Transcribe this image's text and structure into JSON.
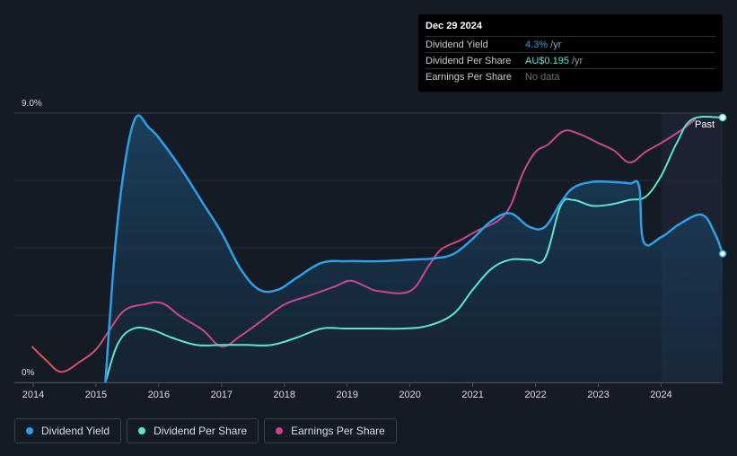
{
  "tooltip": {
    "date": "Dec 29 2024",
    "rows": [
      {
        "label": "Dividend Yield",
        "value": "4.3%",
        "unit": " /yr",
        "color": "#2e9fe6"
      },
      {
        "label": "Dividend Per Share",
        "value": "AU$0.195",
        "unit": " /yr",
        "color": "#5ee4d1"
      },
      {
        "label": "Earnings Per Share",
        "value": "No data",
        "unit": "",
        "color": "#6b7078"
      }
    ]
  },
  "past_label": "Past",
  "legend": [
    {
      "label": "Dividend Yield",
      "color": "#2e9fe6"
    },
    {
      "label": "Dividend Per Share",
      "color": "#5ee4d1"
    },
    {
      "label": "Earnings Per Share",
      "color": "#c9468f"
    }
  ],
  "chart_data": {
    "type": "line",
    "y_tick_labels": [
      "9.0%",
      "0%"
    ],
    "ylim": [
      0,
      9.0
    ],
    "xlim": [
      2013.7,
      2024.98
    ],
    "x_tick_labels": [
      "2014",
      "2015",
      "2016",
      "2017",
      "2018",
      "2019",
      "2020",
      "2021",
      "2022",
      "2023",
      "2024"
    ],
    "x_ticks": [
      2014,
      2015,
      2016,
      2017,
      2018,
      2019,
      2020,
      2021,
      2022,
      2023,
      2024
    ],
    "forecast_start": 2024.0,
    "series": [
      {
        "name": "Dividend Yield",
        "color": "#2e9fe6",
        "filled": true,
        "points": [
          [
            2015.15,
            0
          ],
          [
            2015.35,
            5.5
          ],
          [
            2015.6,
            8.7
          ],
          [
            2015.85,
            8.5
          ],
          [
            2016.1,
            7.9
          ],
          [
            2016.4,
            7.0
          ],
          [
            2016.7,
            6.0
          ],
          [
            2017.0,
            5.0
          ],
          [
            2017.3,
            3.8
          ],
          [
            2017.6,
            3.1
          ],
          [
            2017.9,
            3.1
          ],
          [
            2018.2,
            3.5
          ],
          [
            2018.6,
            4.0
          ],
          [
            2019.0,
            4.05
          ],
          [
            2019.5,
            4.05
          ],
          [
            2020.0,
            4.1
          ],
          [
            2020.4,
            4.15
          ],
          [
            2020.7,
            4.3
          ],
          [
            2021.0,
            4.8
          ],
          [
            2021.3,
            5.4
          ],
          [
            2021.6,
            5.65
          ],
          [
            2021.9,
            5.2
          ],
          [
            2022.15,
            5.2
          ],
          [
            2022.4,
            6.0
          ],
          [
            2022.6,
            6.5
          ],
          [
            2022.9,
            6.7
          ],
          [
            2023.2,
            6.7
          ],
          [
            2023.5,
            6.65
          ],
          [
            2023.65,
            6.55
          ],
          [
            2023.72,
            4.7
          ],
          [
            2024.0,
            4.85
          ],
          [
            2024.3,
            5.3
          ],
          [
            2024.65,
            5.6
          ],
          [
            2024.85,
            5.0
          ],
          [
            2024.98,
            4.3
          ]
        ]
      },
      {
        "name": "Dividend Per Share",
        "color": "#5ee4d1",
        "filled": false,
        "points": [
          [
            2015.15,
            0
          ],
          [
            2015.35,
            1.3
          ],
          [
            2015.6,
            1.8
          ],
          [
            2015.9,
            1.75
          ],
          [
            2016.2,
            1.5
          ],
          [
            2016.6,
            1.25
          ],
          [
            2017.0,
            1.25
          ],
          [
            2017.4,
            1.25
          ],
          [
            2017.8,
            1.25
          ],
          [
            2018.2,
            1.5
          ],
          [
            2018.6,
            1.8
          ],
          [
            2019.0,
            1.8
          ],
          [
            2019.5,
            1.8
          ],
          [
            2019.9,
            1.8
          ],
          [
            2020.3,
            1.9
          ],
          [
            2020.7,
            2.3
          ],
          [
            2021.0,
            3.1
          ],
          [
            2021.3,
            3.8
          ],
          [
            2021.6,
            4.1
          ],
          [
            2021.9,
            4.1
          ],
          [
            2022.15,
            4.15
          ],
          [
            2022.4,
            5.9
          ],
          [
            2022.6,
            6.1
          ],
          [
            2022.9,
            5.9
          ],
          [
            2023.2,
            5.95
          ],
          [
            2023.5,
            6.1
          ],
          [
            2023.75,
            6.2
          ],
          [
            2024.0,
            6.9
          ],
          [
            2024.25,
            8.0
          ],
          [
            2024.5,
            8.8
          ],
          [
            2024.98,
            8.85
          ]
        ]
      },
      {
        "name": "Earnings Per Share",
        "color_start": "#e25151",
        "color_end": "#c9468f",
        "filled": false,
        "points": [
          [
            2013.98,
            1.2
          ],
          [
            2014.2,
            0.75
          ],
          [
            2014.45,
            0.35
          ],
          [
            2014.75,
            0.7
          ],
          [
            2015.0,
            1.1
          ],
          [
            2015.2,
            1.7
          ],
          [
            2015.45,
            2.4
          ],
          [
            2015.75,
            2.6
          ],
          [
            2016.05,
            2.65
          ],
          [
            2016.35,
            2.2
          ],
          [
            2016.7,
            1.75
          ],
          [
            2017.0,
            1.2
          ],
          [
            2017.3,
            1.55
          ],
          [
            2017.6,
            2.0
          ],
          [
            2018.0,
            2.6
          ],
          [
            2018.4,
            2.9
          ],
          [
            2018.8,
            3.2
          ],
          [
            2019.05,
            3.4
          ],
          [
            2019.3,
            3.2
          ],
          [
            2019.5,
            3.05
          ],
          [
            2020.0,
            3.05
          ],
          [
            2020.3,
            3.9
          ],
          [
            2020.5,
            4.45
          ],
          [
            2020.8,
            4.75
          ],
          [
            2021.1,
            5.1
          ],
          [
            2021.4,
            5.4
          ],
          [
            2021.6,
            5.9
          ],
          [
            2021.8,
            7.0
          ],
          [
            2022.0,
            7.7
          ],
          [
            2022.2,
            7.95
          ],
          [
            2022.45,
            8.4
          ],
          [
            2022.7,
            8.3
          ],
          [
            2023.0,
            8.0
          ],
          [
            2023.25,
            7.75
          ],
          [
            2023.5,
            7.35
          ],
          [
            2023.75,
            7.7
          ],
          [
            2024.0,
            8.0
          ],
          [
            2024.3,
            8.4
          ],
          [
            2024.55,
            8.8
          ]
        ]
      }
    ]
  }
}
